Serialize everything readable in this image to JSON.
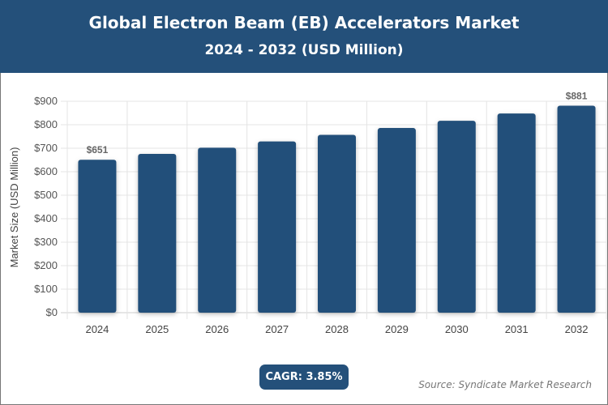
{
  "header": {
    "title": "Global Electron Beam (EB) Accelerators Market",
    "subtitle": "2024 - 2032 (USD Million)"
  },
  "chart_data": {
    "type": "bar",
    "categories": [
      "2024",
      "2025",
      "2026",
      "2027",
      "2028",
      "2029",
      "2030",
      "2031",
      "2032"
    ],
    "values": [
      651,
      676,
      702,
      729,
      757,
      786,
      817,
      848,
      881
    ],
    "data_labels": {
      "0": "$651",
      "8": "$881"
    },
    "ylabel": "Market Size (USD Million)",
    "xlabel": "",
    "ylim": [
      0,
      900
    ],
    "yticks": [
      "$0",
      "$100",
      "$200",
      "$300",
      "$400",
      "$500",
      "$600",
      "$700",
      "$800",
      "$900"
    ],
    "grid": true,
    "bar_color": "#24507a"
  },
  "footer": {
    "cagr": "CAGR: 3.85%",
    "source": "Source: Syndicate Market Research"
  }
}
